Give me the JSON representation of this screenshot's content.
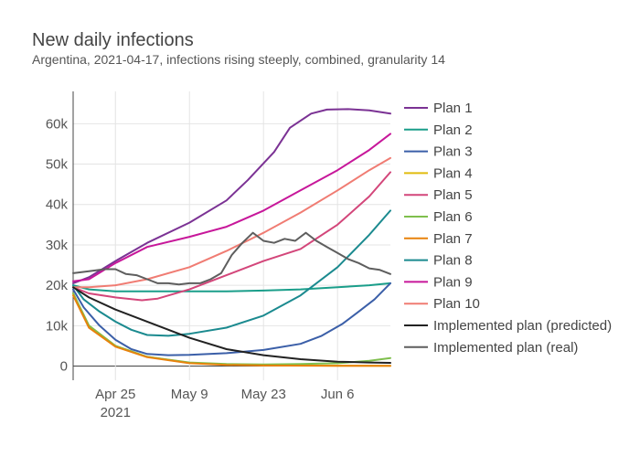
{
  "chart_data": {
    "type": "line",
    "title": "New daily infections",
    "subtitle": "Argentina, 2021-04-17, infections rising steeply, combined, granularity 14",
    "xlabel": "",
    "ylabel": "",
    "x_range": [
      "2021-04-17",
      "2021-06-16"
    ],
    "y_range": [
      -3500,
      68000
    ],
    "x_ticks": [
      {
        "date": "2021-04-25",
        "label": "Apr 25",
        "sublabel": "2021"
      },
      {
        "date": "2021-05-09",
        "label": "May 9",
        "sublabel": ""
      },
      {
        "date": "2021-05-23",
        "label": "May 23",
        "sublabel": ""
      },
      {
        "date": "2021-06-06",
        "label": "Jun 6",
        "sublabel": ""
      }
    ],
    "y_ticks": [
      {
        "value": 0,
        "label": "0"
      },
      {
        "value": 10000,
        "label": "10k"
      },
      {
        "value": 20000,
        "label": "20k"
      },
      {
        "value": 30000,
        "label": "30k"
      },
      {
        "value": 40000,
        "label": "40k"
      },
      {
        "value": 50000,
        "label": "50k"
      },
      {
        "value": 60000,
        "label": "60k"
      }
    ],
    "grid": true,
    "legend_position": "right",
    "series": [
      {
        "name": "Plan 1",
        "color": "#7B3294",
        "x": [
          "2021-04-17",
          "2021-04-20",
          "2021-04-25",
          "2021-05-01",
          "2021-05-09",
          "2021-05-16",
          "2021-05-20",
          "2021-05-25",
          "2021-05-28",
          "2021-06-01",
          "2021-06-04",
          "2021-06-08",
          "2021-06-12",
          "2021-06-16"
        ],
        "values": [
          20500,
          22000,
          26000,
          30500,
          35500,
          41000,
          46000,
          53000,
          59000,
          62500,
          63500,
          63600,
          63300,
          62500
        ]
      },
      {
        "name": "Plan 2",
        "color": "#1A9E8A",
        "x": [
          "2021-04-17",
          "2021-04-20",
          "2021-04-25",
          "2021-05-01",
          "2021-05-09",
          "2021-05-16",
          "2021-05-23",
          "2021-05-30",
          "2021-06-06",
          "2021-06-12",
          "2021-06-16"
        ],
        "values": [
          20000,
          19000,
          18500,
          18500,
          18500,
          18500,
          18700,
          19000,
          19500,
          20000,
          20500
        ]
      },
      {
        "name": "Plan 3",
        "color": "#3B5FA8",
        "x": [
          "2021-04-17",
          "2021-04-19",
          "2021-04-22",
          "2021-04-25",
          "2021-04-28",
          "2021-05-01",
          "2021-05-05",
          "2021-05-09",
          "2021-05-16",
          "2021-05-23",
          "2021-05-30",
          "2021-06-03",
          "2021-06-07",
          "2021-06-10",
          "2021-06-13",
          "2021-06-16"
        ],
        "values": [
          19000,
          14500,
          10000,
          6500,
          4200,
          3000,
          2700,
          2800,
          3200,
          4000,
          5500,
          7500,
          10500,
          13500,
          16500,
          20500
        ]
      },
      {
        "name": "Plan 4",
        "color": "#E0BB0D",
        "x": [
          "2021-04-17",
          "2021-04-20",
          "2021-04-25",
          "2021-05-01",
          "2021-05-09",
          "2021-05-16",
          "2021-05-23",
          "2021-06-06",
          "2021-06-16"
        ],
        "values": [
          18000,
          10000,
          5000,
          2300,
          800,
          400,
          200,
          100,
          50
        ]
      },
      {
        "name": "Plan 5",
        "color": "#D3467A",
        "x": [
          "2021-04-17",
          "2021-04-20",
          "2021-04-25",
          "2021-04-30",
          "2021-05-03",
          "2021-05-09",
          "2021-05-16",
          "2021-05-23",
          "2021-05-30",
          "2021-06-06",
          "2021-06-12",
          "2021-06-16"
        ],
        "values": [
          19500,
          18000,
          17000,
          16300,
          16700,
          19000,
          22500,
          26000,
          29000,
          35000,
          42000,
          48000
        ]
      },
      {
        "name": "Plan 6",
        "color": "#7FBF4D",
        "x": [
          "2021-04-17",
          "2021-04-20",
          "2021-04-25",
          "2021-05-01",
          "2021-05-09",
          "2021-05-16",
          "2021-05-23",
          "2021-05-30",
          "2021-06-06",
          "2021-06-12",
          "2021-06-16"
        ],
        "values": [
          18000,
          10000,
          5000,
          2300,
          900,
          500,
          400,
          500,
          700,
          1300,
          2000
        ]
      },
      {
        "name": "Plan 7",
        "color": "#E8820C",
        "x": [
          "2021-04-17",
          "2021-04-20",
          "2021-04-25",
          "2021-05-01",
          "2021-05-09",
          "2021-05-16",
          "2021-05-23",
          "2021-06-06",
          "2021-06-16"
        ],
        "values": [
          17500,
          9500,
          4800,
          2200,
          700,
          300,
          150,
          80,
          50
        ]
      },
      {
        "name": "Plan 8",
        "color": "#1B8A8F",
        "x": [
          "2021-04-17",
          "2021-04-19",
          "2021-04-22",
          "2021-04-25",
          "2021-04-28",
          "2021-05-01",
          "2021-05-05",
          "2021-05-09",
          "2021-05-16",
          "2021-05-23",
          "2021-05-30",
          "2021-06-06",
          "2021-06-12",
          "2021-06-16"
        ],
        "values": [
          20000,
          16500,
          13500,
          11000,
          9000,
          7700,
          7500,
          8000,
          9500,
          12500,
          17500,
          24500,
          32500,
          38500
        ]
      },
      {
        "name": "Plan 9",
        "color": "#C7179A",
        "x": [
          "2021-04-17",
          "2021-04-20",
          "2021-04-25",
          "2021-05-01",
          "2021-05-09",
          "2021-05-16",
          "2021-05-23",
          "2021-05-30",
          "2021-06-06",
          "2021-06-12",
          "2021-06-16"
        ],
        "values": [
          21000,
          21500,
          25500,
          29500,
          32000,
          34500,
          38500,
          43500,
          48500,
          53500,
          57500
        ]
      },
      {
        "name": "Plan 10",
        "color": "#F07C73",
        "x": [
          "2021-04-17",
          "2021-04-20",
          "2021-04-25",
          "2021-05-01",
          "2021-05-09",
          "2021-05-16",
          "2021-05-23",
          "2021-05-30",
          "2021-06-06",
          "2021-06-12",
          "2021-06-16"
        ],
        "values": [
          19500,
          19500,
          20000,
          21500,
          24500,
          28500,
          33000,
          38000,
          43500,
          48500,
          51500
        ]
      },
      {
        "name": "Implemented plan (predicted)",
        "color": "#222222",
        "x": [
          "2021-04-17",
          "2021-04-20",
          "2021-04-25",
          "2021-05-01",
          "2021-05-09",
          "2021-05-16",
          "2021-05-23",
          "2021-05-30",
          "2021-06-06",
          "2021-06-12",
          "2021-06-16"
        ],
        "values": [
          19500,
          17000,
          14000,
          11000,
          7000,
          4200,
          2700,
          1700,
          1100,
          900,
          800
        ]
      },
      {
        "name": "Implemented plan (real)",
        "color": "#5E5E5E",
        "x": [
          "2021-04-17",
          "2021-04-20",
          "2021-04-23",
          "2021-04-25",
          "2021-04-27",
          "2021-04-29",
          "2021-05-01",
          "2021-05-03",
          "2021-05-05",
          "2021-05-07",
          "2021-05-09",
          "2021-05-11",
          "2021-05-13",
          "2021-05-15",
          "2021-05-17",
          "2021-05-19",
          "2021-05-21",
          "2021-05-23",
          "2021-05-25",
          "2021-05-27",
          "2021-05-29",
          "2021-05-31",
          "2021-06-02",
          "2021-06-04",
          "2021-06-06",
          "2021-06-08",
          "2021-06-10",
          "2021-06-12",
          "2021-06-14",
          "2021-06-16"
        ],
        "values": [
          23000,
          23500,
          24000,
          24000,
          22800,
          22500,
          21500,
          20500,
          20500,
          20200,
          20500,
          20500,
          21500,
          23000,
          27500,
          30500,
          33000,
          31000,
          30500,
          31500,
          31000,
          33000,
          31000,
          29500,
          28000,
          26500,
          25500,
          24200,
          23800,
          22800
        ]
      }
    ]
  }
}
